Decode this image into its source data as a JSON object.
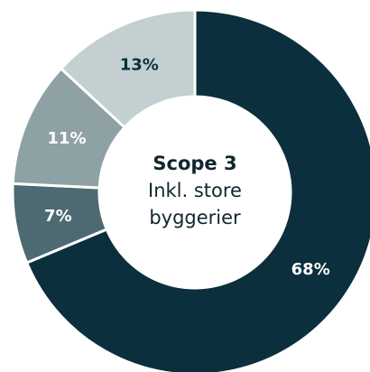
{
  "chart_data": {
    "type": "pie",
    "donut": true,
    "categories": [
      "",
      "",
      "",
      ""
    ],
    "values": [
      68,
      7,
      11,
      13
    ],
    "value_labels": [
      "68%",
      "7%",
      "11%",
      "13%"
    ],
    "colors": [
      "#0b2f3d",
      "#4d6a73",
      "#8ea1a5",
      "#c3cfd1"
    ],
    "label_colors": [
      "#ffffff",
      "#ffffff",
      "#ffffff",
      "#0b2f3d"
    ],
    "start": "12 o'clock",
    "direction": "clockwise",
    "center_text": {
      "title": "Scope 3",
      "line1": "Inkl. store",
      "line2": "byggerier"
    },
    "legend": "none"
  }
}
